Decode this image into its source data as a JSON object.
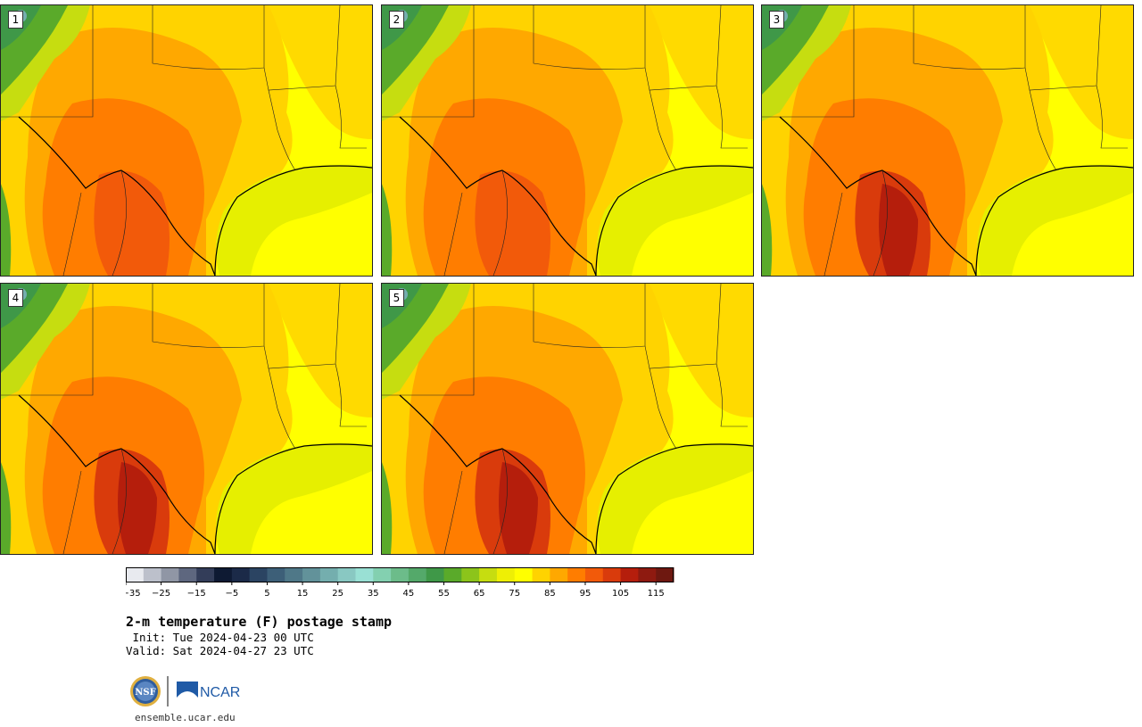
{
  "panels": [
    {
      "label": "1",
      "variant": 0
    },
    {
      "label": "2",
      "variant": 1
    },
    {
      "label": "3",
      "variant": 2
    },
    {
      "label": "4",
      "variant": 3
    },
    {
      "label": "5",
      "variant": 4
    }
  ],
  "colorbar": {
    "colors": [
      "#e8eaef",
      "#bcc0cb",
      "#9096a5",
      "#5e677f",
      "#333d59",
      "#0e1a33",
      "#1b2a48",
      "#2b4462",
      "#3d5f78",
      "#4f7888",
      "#62929a",
      "#74aeae",
      "#89c8c2",
      "#99e0d4",
      "#83d0b0",
      "#6cbc8a",
      "#54a96a",
      "#3f9848",
      "#5aaa2a",
      "#8cc41b",
      "#c6dd10",
      "#eeef05",
      "#ffff00",
      "#ffd300",
      "#ffa800",
      "#ff7d00",
      "#f25a0a",
      "#d93b0c",
      "#b51e0c",
      "#8e1a10",
      "#6e1810"
    ],
    "min": -35,
    "max": 120,
    "step": 5,
    "tick_labels": [
      "−35",
      "−25",
      "−15",
      "−5",
      "5",
      "15",
      "25",
      "35",
      "45",
      "55",
      "65",
      "75",
      "85",
      "95",
      "105",
      "115"
    ]
  },
  "title": "2-m temperature (F) postage stamp",
  "init": " Init: Tue 2024-04-23 00 UTC",
  "valid": "Valid: Sat 2024-04-27 23 UTC",
  "logos": {
    "nsf": "NSF",
    "ncar": "NCAR"
  },
  "site": "ensemble.ucar.edu"
}
